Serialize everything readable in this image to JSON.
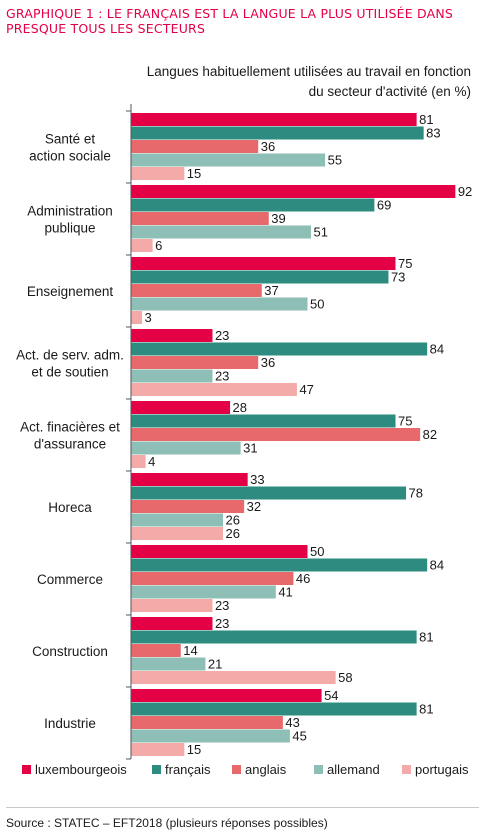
{
  "header": {
    "title": "GRAPHIQUE 1 : LE FRANÇAIS EST LA LANGUE LA PLUS UTILISÉE DANS PRESQUE TOUS LES SECTEURS",
    "subtitle_line1": "Langues habituellement utilisées au travail en fonction",
    "subtitle_line2": "du secteur d'activité (en %)"
  },
  "footer": {
    "source": "Source : STATEC – EFT2018 (plusieurs réponses possibles)"
  },
  "chart_data": {
    "type": "bar",
    "orientation": "horizontal",
    "title": "Langues habituellement utilisées au travail en fonction du secteur d'activité (en %)",
    "categories": [
      [
        "Santé et",
        "action sociale"
      ],
      [
        "Administration",
        "publique"
      ],
      [
        "Enseignement"
      ],
      [
        "Act. de serv. adm.",
        "et de soutien"
      ],
      [
        "Act. finacières et",
        "d'assurance"
      ],
      [
        "Horeca"
      ],
      [
        "Commerce"
      ],
      [
        "Construction"
      ],
      [
        "Industrie"
      ]
    ],
    "series": [
      {
        "name": "luxembourgeois",
        "color": "#e30045",
        "values": [
          81,
          92,
          75,
          23,
          28,
          33,
          50,
          23,
          54
        ]
      },
      {
        "name": "français",
        "color": "#2e8b7f",
        "values": [
          83,
          69,
          73,
          84,
          75,
          78,
          84,
          81,
          81
        ]
      },
      {
        "name": "anglais",
        "color": "#e8696b",
        "values": [
          36,
          39,
          37,
          36,
          82,
          32,
          46,
          14,
          43
        ]
      },
      {
        "name": "allemand",
        "color": "#8ebfb7",
        "values": [
          55,
          51,
          50,
          23,
          31,
          26,
          41,
          21,
          45
        ]
      },
      {
        "name": "portugais",
        "color": "#f4aaa8",
        "values": [
          15,
          6,
          3,
          47,
          4,
          26,
          23,
          58,
          15
        ]
      }
    ],
    "xlim": [
      0,
      100
    ],
    "grid": false,
    "legend_position": "bottom"
  }
}
